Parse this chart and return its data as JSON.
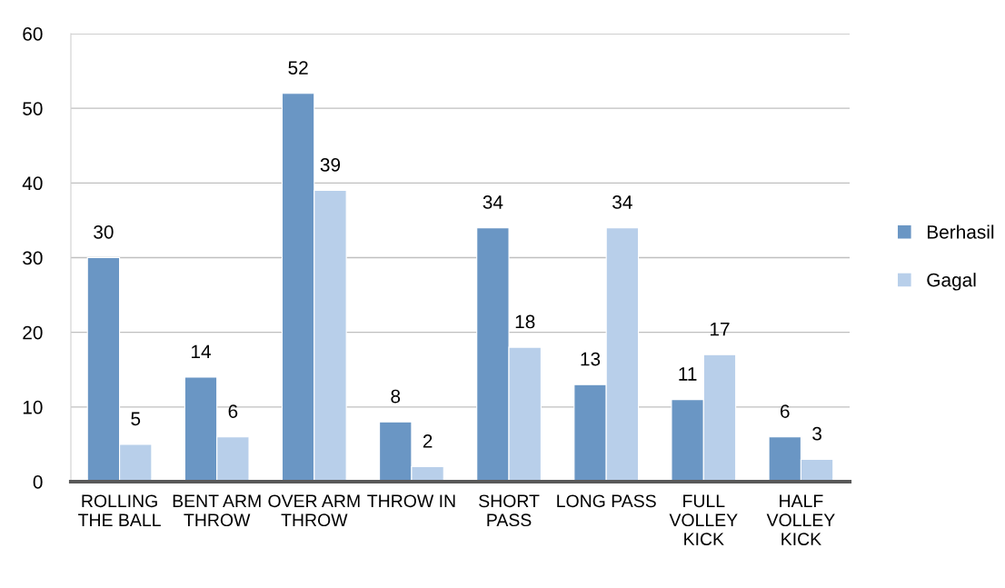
{
  "chart_data": {
    "type": "bar",
    "categories": [
      "ROLLING THE BALL",
      "BENT ARM THROW",
      "OVER ARM THROW",
      "THROW IN",
      "SHORT PASS",
      "LONG PASS",
      "FULL VOLLEY KICK",
      "HALF VOLLEY KICK"
    ],
    "series": [
      {
        "name": "Berhasil",
        "color": "#6a96c4",
        "values": [
          30,
          14,
          52,
          8,
          34,
          13,
          11,
          6
        ]
      },
      {
        "name": "Gagal",
        "color": "#b8cfea",
        "values": [
          5,
          6,
          39,
          2,
          18,
          34,
          17,
          3
        ]
      }
    ],
    "ylim": [
      0,
      60
    ],
    "yticks": [
      0,
      10,
      20,
      30,
      40,
      50,
      60
    ],
    "grid": "y",
    "legend": "right",
    "data_labels": true
  }
}
